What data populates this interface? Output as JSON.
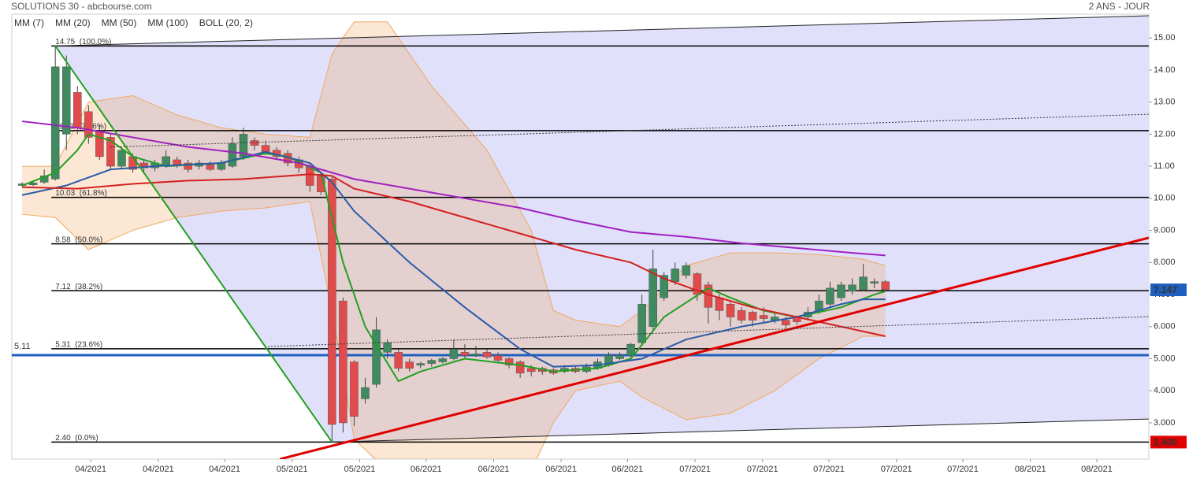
{
  "chart_data": {
    "type": "candlestick",
    "title": "SOLUTIONS 30 - abcbourse.com",
    "subtitle": "2 ANS - JOUR",
    "xlim": [
      -0.93,
      101.8
    ],
    "ylim": [
      1.87,
      15.74
    ],
    "xticks": [
      {
        "value": 6.2,
        "label": "04/2021"
      },
      {
        "value": 12.3,
        "label": "04/2021"
      },
      {
        "value": 18.3,
        "label": "04/2021"
      },
      {
        "value": 24.4,
        "label": "05/2021"
      },
      {
        "value": 30.5,
        "label": "05/2021"
      },
      {
        "value": 36.5,
        "label": "06/2021"
      },
      {
        "value": 42.6,
        "label": "06/2021"
      },
      {
        "value": 48.7,
        "label": "06/2021"
      },
      {
        "value": 54.7,
        "label": "06/2021"
      },
      {
        "value": 60.8,
        "label": "07/2021"
      },
      {
        "value": 66.9,
        "label": "07/2021"
      },
      {
        "value": 72.9,
        "label": "07/2021"
      },
      {
        "value": 79.0,
        "label": "07/2021"
      },
      {
        "value": 85.0,
        "label": "07/2021"
      },
      {
        "value": 91.1,
        "label": "08/2021"
      },
      {
        "value": 97.1,
        "label": "08/2021"
      }
    ],
    "yticks": [
      {
        "value": 3,
        "label": "3.000"
      },
      {
        "value": 4,
        "label": "4.000"
      },
      {
        "value": 5,
        "label": "5.000"
      },
      {
        "value": 6,
        "label": "6.000"
      },
      {
        "value": 7,
        "label": "7.000"
      },
      {
        "value": 8,
        "label": "8.000"
      },
      {
        "value": 9,
        "label": "9.000"
      },
      {
        "value": 10,
        "label": "10.00"
      },
      {
        "value": 11,
        "label": "11.00"
      },
      {
        "value": 12,
        "label": "12.00"
      },
      {
        "value": 13,
        "label": "13.00"
      },
      {
        "value": 14,
        "label": "14.00"
      },
      {
        "value": 15,
        "label": "15.00"
      }
    ],
    "up_color": "#3f8a5e",
    "down_color": "#e24b4b",
    "candles": [
      [
        10.4,
        10.5,
        10.35,
        10.45
      ],
      [
        10.42,
        10.55,
        10.38,
        10.48
      ],
      [
        10.5,
        10.9,
        10.45,
        10.7
      ],
      [
        10.6,
        14.75,
        10.55,
        14.1
      ],
      [
        12.0,
        14.45,
        11.5,
        14.1
      ],
      [
        13.3,
        13.5,
        12.0,
        12.2
      ],
      [
        12.7,
        12.9,
        11.7,
        11.9
      ],
      [
        12.1,
        12.3,
        11.2,
        11.3
      ],
      [
        11.9,
        12.0,
        10.9,
        11.0
      ],
      [
        11.0,
        11.6,
        10.9,
        11.5
      ],
      [
        11.3,
        11.4,
        10.8,
        10.9
      ],
      [
        11.1,
        11.2,
        10.8,
        10.95
      ],
      [
        10.95,
        11.2,
        10.85,
        11.1
      ],
      [
        11.05,
        11.5,
        10.95,
        11.3
      ],
      [
        11.2,
        11.3,
        10.95,
        11.05
      ],
      [
        11.1,
        11.2,
        10.8,
        10.9
      ],
      [
        11.0,
        11.2,
        10.9,
        11.1
      ],
      [
        11.05,
        11.15,
        10.85,
        10.9
      ],
      [
        10.9,
        11.2,
        10.85,
        11.1
      ],
      [
        11.0,
        11.9,
        10.95,
        11.7
      ],
      [
        11.3,
        12.2,
        11.2,
        12.0
      ],
      [
        11.8,
        11.9,
        11.5,
        11.65
      ],
      [
        11.65,
        11.8,
        11.35,
        11.45
      ],
      [
        11.5,
        11.6,
        11.2,
        11.3
      ],
      [
        11.4,
        11.5,
        11.0,
        11.1
      ],
      [
        11.2,
        11.3,
        10.8,
        10.95
      ],
      [
        11.0,
        11.1,
        10.2,
        10.4
      ],
      [
        10.7,
        10.8,
        10.1,
        10.2
      ],
      [
        10.6,
        10.7,
        2.4,
        2.95
      ],
      [
        6.8,
        6.9,
        2.7,
        3.0
      ],
      [
        4.9,
        4.95,
        2.9,
        3.2
      ],
      [
        3.75,
        4.4,
        3.6,
        4.1
      ],
      [
        4.2,
        6.3,
        4.1,
        5.9
      ],
      [
        5.2,
        5.6,
        5.0,
        5.5
      ],
      [
        5.2,
        5.3,
        4.6,
        4.7
      ],
      [
        4.9,
        5.0,
        4.6,
        4.7
      ],
      [
        4.8,
        4.9,
        4.7,
        4.85
      ],
      [
        4.85,
        5.0,
        4.75,
        4.95
      ],
      [
        4.9,
        5.05,
        4.85,
        5.0
      ],
      [
        5.0,
        5.6,
        4.95,
        5.3
      ],
      [
        5.2,
        5.45,
        5.0,
        5.1
      ],
      [
        5.1,
        5.4,
        5.05,
        5.15
      ],
      [
        5.2,
        5.3,
        5.0,
        5.05
      ],
      [
        5.1,
        5.2,
        4.85,
        4.95
      ],
      [
        5.0,
        5.05,
        4.7,
        4.8
      ],
      [
        4.9,
        4.95,
        4.4,
        4.55
      ],
      [
        4.7,
        4.8,
        4.45,
        4.6
      ],
      [
        4.7,
        4.75,
        4.5,
        4.6
      ],
      [
        4.65,
        4.7,
        4.5,
        4.55
      ],
      [
        4.6,
        4.8,
        4.55,
        4.7
      ],
      [
        4.7,
        4.75,
        4.55,
        4.6
      ],
      [
        4.6,
        4.85,
        4.55,
        4.75
      ],
      [
        4.7,
        5.0,
        4.65,
        4.9
      ],
      [
        4.8,
        5.2,
        4.75,
        5.1
      ],
      [
        5.0,
        5.2,
        4.95,
        5.1
      ],
      [
        5.1,
        5.5,
        5.05,
        5.45
      ],
      [
        5.5,
        7.0,
        5.4,
        6.7
      ],
      [
        6.0,
        8.4,
        5.9,
        7.8
      ],
      [
        6.9,
        7.7,
        6.8,
        7.6
      ],
      [
        7.4,
        8.0,
        7.3,
        7.8
      ],
      [
        7.6,
        8.0,
        7.5,
        7.9
      ],
      [
        7.65,
        7.7,
        6.8,
        7.0
      ],
      [
        7.3,
        7.4,
        6.1,
        6.6
      ],
      [
        6.9,
        7.0,
        6.2,
        6.5
      ],
      [
        6.7,
        6.8,
        6.0,
        6.3
      ],
      [
        6.5,
        6.6,
        6.1,
        6.2
      ],
      [
        6.45,
        6.5,
        6.0,
        6.2
      ],
      [
        6.35,
        6.6,
        6.1,
        6.25
      ],
      [
        6.2,
        6.45,
        6.1,
        6.3
      ],
      [
        6.2,
        6.3,
        5.95,
        6.05
      ],
      [
        6.3,
        6.35,
        6.05,
        6.15
      ],
      [
        6.3,
        6.6,
        6.2,
        6.45
      ],
      [
        6.5,
        7.0,
        6.4,
        6.8
      ],
      [
        6.7,
        7.4,
        6.6,
        7.2
      ],
      [
        6.9,
        7.4,
        6.8,
        7.3
      ],
      [
        7.1,
        7.5,
        7.0,
        7.3
      ],
      [
        7.15,
        7.95,
        7.1,
        7.55
      ],
      [
        7.35,
        7.5,
        7.2,
        7.4
      ],
      [
        7.4,
        7.45,
        7.1,
        7.15
      ]
    ],
    "series": [
      {
        "name": "MM (7)",
        "color": "#22a022",
        "x": [
          0,
          3,
          5,
          6,
          8,
          10,
          13,
          18,
          22,
          24,
          27,
          29,
          31,
          34,
          36,
          40,
          45,
          48,
          52,
          55,
          58,
          62,
          64,
          67,
          70,
          74,
          77,
          78
        ],
        "values": [
          10.4,
          10.8,
          11.5,
          12.0,
          11.8,
          11.3,
          11.0,
          11.1,
          11.4,
          11.3,
          10.8,
          8.0,
          6.0,
          4.3,
          4.6,
          5.0,
          4.8,
          4.6,
          4.7,
          5.0,
          6.3,
          7.2,
          6.9,
          6.5,
          6.3,
          6.6,
          7.0,
          7.1
        ]
      },
      {
        "name": "MM (20)",
        "color": "#2a5ca8",
        "x": [
          0,
          4,
          8,
          12,
          18,
          22,
          26,
          28,
          30,
          35,
          40,
          45,
          48,
          52,
          56,
          60,
          65,
          70,
          74,
          76,
          78
        ],
        "values": [
          10.1,
          10.4,
          10.9,
          11.0,
          11.1,
          11.45,
          11.1,
          10.5,
          9.6,
          8.0,
          6.6,
          5.3,
          4.75,
          4.8,
          5.0,
          5.6,
          6.0,
          6.3,
          6.7,
          6.85,
          6.85
        ]
      },
      {
        "name": "MM (50)",
        "color": "#d42020",
        "x": [
          0,
          5,
          10,
          15,
          20,
          26,
          28,
          30,
          35,
          40,
          45,
          50,
          55,
          58,
          62,
          66,
          70,
          74,
          78
        ],
        "values": [
          10.35,
          10.3,
          10.45,
          10.55,
          10.6,
          10.75,
          10.7,
          10.3,
          9.9,
          9.4,
          8.9,
          8.4,
          8.0,
          7.5,
          7.0,
          6.6,
          6.3,
          6.0,
          5.7
        ]
      },
      {
        "name": "MM (100)",
        "color": "#a020c0",
        "x": [
          0,
          5,
          10,
          15,
          20,
          25,
          30,
          35,
          40,
          45,
          50,
          55,
          60,
          65,
          70,
          75,
          78
        ],
        "values": [
          12.4,
          12.2,
          11.9,
          11.6,
          11.4,
          11.1,
          10.6,
          10.3,
          10.0,
          9.7,
          9.3,
          8.95,
          8.8,
          8.6,
          8.45,
          8.3,
          8.22
        ]
      }
    ],
    "bollinger": {
      "name": "BOLL (20, 2)",
      "color": "#f0a860",
      "x": [
        0,
        3,
        6,
        10,
        14,
        18,
        22,
        26,
        28,
        30,
        33,
        37,
        42,
        46,
        48,
        50,
        54,
        56,
        60,
        64,
        68,
        72,
        76,
        78
      ],
      "upper": [
        11.0,
        11.0,
        13.0,
        13.2,
        12.6,
        12.2,
        12.0,
        11.9,
        14.5,
        15.5,
        15.5,
        13.5,
        11.5,
        9.0,
        6.5,
        6.2,
        6.0,
        6.5,
        7.9,
        8.3,
        8.3,
        8.25,
        8.1,
        7.9
      ],
      "lower": [
        9.5,
        9.4,
        8.4,
        9.0,
        9.4,
        9.6,
        9.7,
        9.9,
        6.5,
        2.5,
        1.5,
        1.0,
        1.0,
        1.5,
        3.0,
        4.0,
        4.3,
        3.8,
        3.1,
        3.3,
        4.0,
        5.0,
        5.7,
        5.7
      ]
    },
    "fib_levels": [
      {
        "value": 14.75,
        "label": "14.75  (100.0%)"
      },
      {
        "value": 12.11,
        "label": "12.11  (78.6%)"
      },
      {
        "value": 10.03,
        "label": "10.03  (61.8%)"
      },
      {
        "value": 8.58,
        "label": "8.58  (50.0%)"
      },
      {
        "value": 7.12,
        "label": "7.12  (38.2%)"
      },
      {
        "value": 5.31,
        "label": "5.31  (23.6%)"
      },
      {
        "value": 2.4,
        "label": "2.40  (0.0%)"
      }
    ],
    "support": {
      "value": 5.11,
      "color": "#1f5fbf"
    },
    "trend_lines": [
      {
        "color": "#222222",
        "width": 1,
        "points": [
          [
            3,
            14.75
          ],
          [
            101.8,
            15.69
          ]
        ]
      },
      {
        "color": "#222222",
        "width": 1,
        "points": [
          [
            28,
            2.4
          ],
          [
            101.8,
            3.12
          ]
        ]
      },
      {
        "color": "#22a022",
        "width": 2,
        "points": [
          [
            3,
            14.75
          ],
          [
            28,
            2.4
          ]
        ]
      },
      {
        "color": "#e00000",
        "width": 3,
        "points": [
          [
            23.3,
            1.87
          ],
          [
            101.8,
            8.77
          ]
        ]
      },
      {
        "color": "#333333",
        "width": 1,
        "dash": true,
        "points": [
          [
            8,
            11.6
          ],
          [
            101.8,
            12.62
          ]
        ]
      },
      {
        "color": "#333333",
        "width": 1,
        "dash": true,
        "points": [
          [
            22.2,
            5.38
          ],
          [
            101.8,
            6.31
          ]
        ]
      }
    ],
    "price_tags": [
      {
        "value": 7.147,
        "color": "#1f5fbf"
      },
      {
        "value": 2.4,
        "label": "2.400",
        "color": "#e00000"
      }
    ]
  }
}
